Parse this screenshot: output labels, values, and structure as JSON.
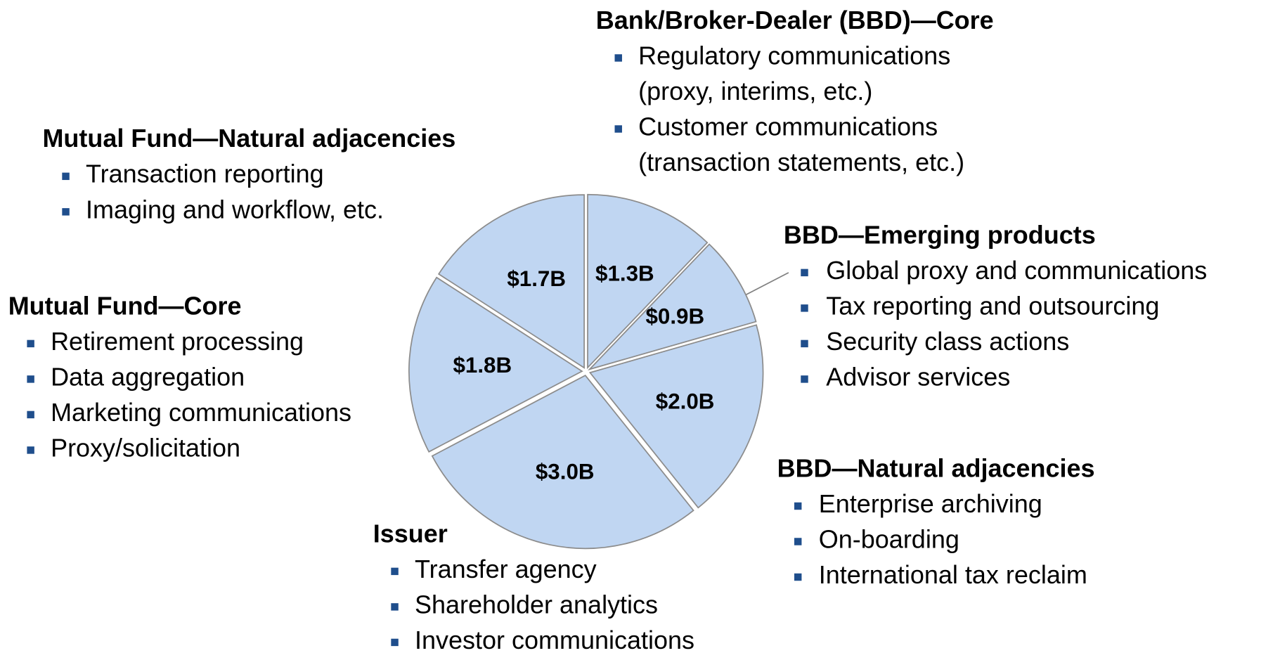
{
  "chart_data": {
    "type": "pie",
    "categories": [
      "Bank/Broker-Dealer (BBD)—Core",
      "BBD—Emerging products",
      "BBD—Natural adjacencies",
      "Issuer",
      "Mutual Fund—Core",
      "Mutual Fund—Natural adjacencies"
    ],
    "values": [
      1.3,
      0.9,
      2.0,
      3.0,
      1.8,
      1.7
    ],
    "value_labels": [
      "$1.3B",
      "$0.9B",
      "$2.0B",
      "$3.0B",
      "$1.8B",
      "$1.7B"
    ],
    "color": "#c0d6f2",
    "bullets": [
      [
        [
          "Regulatory communications",
          "(proxy, interims, etc.)"
        ],
        [
          "Customer communications",
          "(transaction statements, etc.)"
        ]
      ],
      [
        [
          "Global proxy and communications"
        ],
        [
          "Tax reporting and outsourcing"
        ],
        [
          "Security class actions"
        ],
        [
          "Advisor services"
        ]
      ],
      [
        [
          "Enterprise archiving"
        ],
        [
          "On-boarding"
        ],
        [
          "International tax reclaim"
        ]
      ],
      [
        [
          "Transfer agency"
        ],
        [
          "Shareholder analytics"
        ],
        [
          "Investor communications"
        ]
      ],
      [
        [
          "Retirement processing"
        ],
        [
          "Data aggregation"
        ],
        [
          "Marketing communications"
        ],
        [
          "Proxy/solicitation"
        ]
      ],
      [
        [
          "Transaction reporting"
        ],
        [
          "Imaging and workflow, etc."
        ]
      ]
    ]
  }
}
